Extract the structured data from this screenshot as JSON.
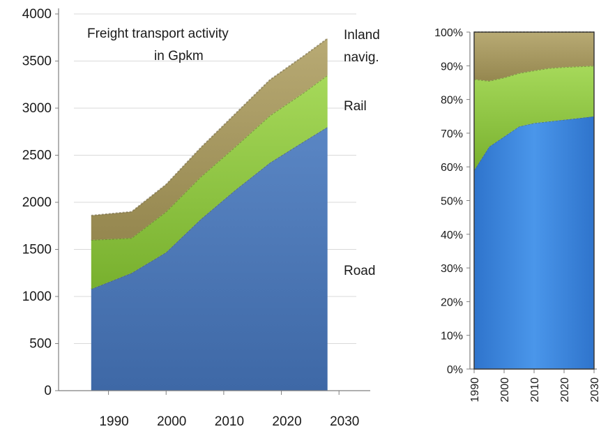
{
  "chart_data": [
    {
      "type": "area",
      "stacked": true,
      "title": "Freight transport activity",
      "subtitle": "in Gpkm",
      "xlabel": "",
      "ylabel": "",
      "x": [
        1987,
        1994,
        2000,
        2006,
        2012,
        2018,
        2024,
        2028
      ],
      "xticks": [
        1990,
        2000,
        2010,
        2020,
        2030
      ],
      "xlim": [
        1984,
        2033
      ],
      "ylim": [
        0,
        4000
      ],
      "yticks": [
        0,
        500,
        1000,
        1500,
        2000,
        2500,
        3000,
        3500,
        4000
      ],
      "grid": "horizontal",
      "legend": "inline-right",
      "series": [
        {
          "name": "Road",
          "color": "#4a73b0",
          "values": [
            1080,
            1250,
            1470,
            1820,
            2130,
            2420,
            2650,
            2800
          ]
        },
        {
          "name": "Rail",
          "color": "#8dc63f",
          "values": [
            520,
            370,
            430,
            450,
            460,
            500,
            520,
            550
          ]
        },
        {
          "name": "Inland navig.",
          "color": "#a89a64",
          "values": [
            260,
            280,
            290,
            310,
            350,
            380,
            390,
            390
          ]
        }
      ],
      "labels": {
        "road": "Road",
        "rail": "Rail",
        "inland_line1": "Inland",
        "inland_line2": "navig."
      }
    },
    {
      "type": "area",
      "stacked": true,
      "percent": true,
      "title": "",
      "xlabel": "",
      "ylabel": "",
      "x": [
        1990,
        1995,
        2000,
        2005,
        2010,
        2015,
        2020,
        2025,
        2030
      ],
      "xticks": [
        1990,
        2000,
        2010,
        2020,
        2030
      ],
      "xlim": [
        1990,
        2030
      ],
      "ylim": [
        0,
        100
      ],
      "yticks": [
        0,
        10,
        20,
        30,
        40,
        50,
        60,
        70,
        80,
        90,
        100
      ],
      "ytick_suffix": "%",
      "grid": false,
      "series": [
        {
          "name": "Road",
          "color": "#3f8be0",
          "values": [
            59,
            66,
            69,
            72,
            73,
            73.5,
            74,
            74.5,
            75
          ]
        },
        {
          "name": "Rail",
          "color": "#8dc63f",
          "values": [
            27,
            19.5,
            17.5,
            15.8,
            15.6,
            15.8,
            15.6,
            15.3,
            15
          ]
        },
        {
          "name": "Inland navig.",
          "color": "#a89a64",
          "values": [
            14,
            14.5,
            13.5,
            12.2,
            11.4,
            10.7,
            10.4,
            10.2,
            10
          ]
        }
      ]
    }
  ]
}
